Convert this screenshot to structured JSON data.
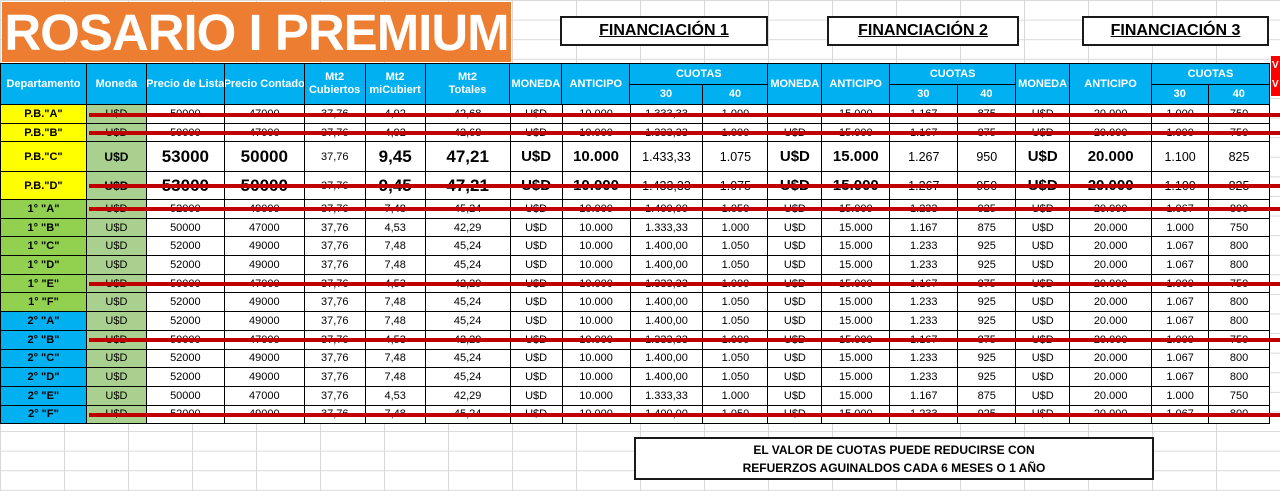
{
  "title": "ROSARIO I PREMIUM",
  "financing_headers": [
    "FINANCIACIÓN 1",
    "FINANCIACIÓN 2",
    "FINANCIACIÓN 3"
  ],
  "columns": {
    "dept": "Departamento",
    "moneda": "Moneda",
    "lista": "Precio de Lista",
    "contado": "Precio Contado",
    "cub_l1": "Mt2",
    "cub_l2": "Cubiertos",
    "semi_l1": "Mt2",
    "semi_l2": "miCubiert",
    "tot_l1": "Mt2",
    "tot_l2": "Totales",
    "fin_mon": "MONEDA",
    "fin_ant": "ANTICIPO",
    "fin_cuotas": "CUOTAS",
    "c30": "30",
    "c40": "40"
  },
  "rows": [
    {
      "dept": "P.B.\"A\"",
      "tier": "pb",
      "struck": true,
      "tall": false,
      "moneda": "U$D",
      "lista": "50000",
      "contado": "47000",
      "cub": "37,76",
      "semi": "4,92",
      "tot": "42,68",
      "f1": [
        "U$D",
        "10.000",
        "1.333,33",
        "1.000"
      ],
      "f2": [
        "",
        "15.000",
        "1.167",
        "875"
      ],
      "f3": [
        "U$D",
        "20.000",
        "1.000",
        "750"
      ]
    },
    {
      "dept": "P.B.\"B\"",
      "tier": "pb",
      "struck": true,
      "tall": false,
      "moneda": "U$D",
      "lista": "50000",
      "contado": "47000",
      "cub": "37,76",
      "semi": "4,92",
      "tot": "42,68",
      "f1": [
        "U$D",
        "10.000",
        "1.333,33",
        "1.000"
      ],
      "f2": [
        "U$D",
        "15.000",
        "1.167",
        "875"
      ],
      "f3": [
        "U$D",
        "20.000",
        "1.000",
        "750"
      ]
    },
    {
      "dept": "P.B.\"C\"",
      "tier": "pb",
      "struck": false,
      "tall": true,
      "moneda": "U$D",
      "lista": "53000",
      "contado": "50000",
      "cub": "37,76",
      "semi": "9,45",
      "tot": "47,21",
      "f1": [
        "U$D",
        "10.000",
        "1.433,33",
        "1.075"
      ],
      "f2": [
        "U$D",
        "15.000",
        "1.267",
        "950"
      ],
      "f3": [
        "U$D",
        "20.000",
        "1.100",
        "825"
      ]
    },
    {
      "dept": "P.B.\"D\"",
      "tier": "pb",
      "struck": true,
      "tall": true,
      "moneda": "U$D",
      "lista": "53000",
      "contado": "50000",
      "cub": "37,76",
      "semi": "9,45",
      "tot": "47,21",
      "f1": [
        "U$D",
        "10.000",
        "1.433,33",
        "1.075"
      ],
      "f2": [
        "U$D",
        "15.000",
        "1.267",
        "950"
      ],
      "f3": [
        "U$D",
        "20.000",
        "1.100",
        "825"
      ]
    },
    {
      "dept": "1° \"A\"",
      "tier": "p1",
      "struck": true,
      "tall": false,
      "moneda": "U$D",
      "lista": "52000",
      "contado": "49000",
      "cub": "37,76",
      "semi": "7,48",
      "tot": "45,24",
      "f1": [
        "U$D",
        "10.000",
        "1.400,00",
        "1.050"
      ],
      "f2": [
        "U$D",
        "15.000",
        "1.233",
        "925"
      ],
      "f3": [
        "U$D",
        "20.000",
        "1.067",
        "800"
      ]
    },
    {
      "dept": "1° \"B\"",
      "tier": "p1",
      "struck": false,
      "tall": false,
      "moneda": "U$D",
      "lista": "50000",
      "contado": "47000",
      "cub": "37,76",
      "semi": "4,53",
      "tot": "42,29",
      "f1": [
        "U$D",
        "10.000",
        "1.333,33",
        "1.000"
      ],
      "f2": [
        "U$D",
        "15.000",
        "1.167",
        "875"
      ],
      "f3": [
        "U$D",
        "20.000",
        "1.000",
        "750"
      ]
    },
    {
      "dept": "1° \"C\"",
      "tier": "p1",
      "struck": false,
      "tall": false,
      "moneda": "U$D",
      "lista": "52000",
      "contado": "49000",
      "cub": "37,76",
      "semi": "7,48",
      "tot": "45,24",
      "f1": [
        "U$D",
        "10.000",
        "1.400,00",
        "1.050"
      ],
      "f2": [
        "U$D",
        "15.000",
        "1.233",
        "925"
      ],
      "f3": [
        "U$D",
        "20.000",
        "1.067",
        "800"
      ]
    },
    {
      "dept": "1° \"D\"",
      "tier": "p1",
      "struck": false,
      "tall": false,
      "moneda": "U$D",
      "lista": "52000",
      "contado": "49000",
      "cub": "37,76",
      "semi": "7,48",
      "tot": "45,24",
      "f1": [
        "U$D",
        "10.000",
        "1.400,00",
        "1.050"
      ],
      "f2": [
        "U$D",
        "15.000",
        "1.233",
        "925"
      ],
      "f3": [
        "U$D",
        "20.000",
        "1.067",
        "800"
      ]
    },
    {
      "dept": "1° \"E\"",
      "tier": "p1",
      "struck": true,
      "tall": false,
      "moneda": "U$D",
      "lista": "50000",
      "contado": "47000",
      "cub": "37,76",
      "semi": "4,53",
      "tot": "42,29",
      "f1": [
        "U$D",
        "10.000",
        "1.333,33",
        "1.000"
      ],
      "f2": [
        "U$D",
        "15.000",
        "1.167",
        "875"
      ],
      "f3": [
        "U$D",
        "20.000",
        "1.000",
        "750"
      ]
    },
    {
      "dept": "1° \"F\"",
      "tier": "p1",
      "struck": false,
      "tall": false,
      "moneda": "U$D",
      "lista": "52000",
      "contado": "49000",
      "cub": "37,76",
      "semi": "7,48",
      "tot": "45,24",
      "f1": [
        "U$D",
        "10.000",
        "1.400,00",
        "1.050"
      ],
      "f2": [
        "U$D",
        "15.000",
        "1.233",
        "925"
      ],
      "f3": [
        "U$D",
        "20.000",
        "1.067",
        "800"
      ]
    },
    {
      "dept": "2° \"A\"",
      "tier": "p2",
      "struck": false,
      "tall": false,
      "moneda": "U$D",
      "lista": "52000",
      "contado": "49000",
      "cub": "37,76",
      "semi": "7,48",
      "tot": "45,24",
      "f1": [
        "U$D",
        "10.000",
        "1.400,00",
        "1.050"
      ],
      "f2": [
        "U$D",
        "15.000",
        "1.233",
        "925"
      ],
      "f3": [
        "U$D",
        "20.000",
        "1.067",
        "800"
      ]
    },
    {
      "dept": "2° \"B\"",
      "tier": "p2",
      "struck": true,
      "tall": false,
      "moneda": "U$D",
      "lista": "50000",
      "contado": "47000",
      "cub": "37,76",
      "semi": "4,53",
      "tot": "42,29",
      "f1": [
        "U$D",
        "10.000",
        "1.333,33",
        "1.000"
      ],
      "f2": [
        "U$D",
        "15.000",
        "1.167",
        "875"
      ],
      "f3": [
        "U$D",
        "20.000",
        "1.000",
        "750"
      ]
    },
    {
      "dept": "2° \"C\"",
      "tier": "p2",
      "struck": false,
      "tall": false,
      "moneda": "U$D",
      "lista": "52000",
      "contado": "49000",
      "cub": "37,76",
      "semi": "7,48",
      "tot": "45,24",
      "f1": [
        "U$D",
        "10.000",
        "1.400,00",
        "1.050"
      ],
      "f2": [
        "U$D",
        "15.000",
        "1.233",
        "925"
      ],
      "f3": [
        "U$D",
        "20.000",
        "1.067",
        "800"
      ]
    },
    {
      "dept": "2° \"D\"",
      "tier": "p2",
      "struck": false,
      "tall": false,
      "moneda": "U$D",
      "lista": "52000",
      "contado": "49000",
      "cub": "37,76",
      "semi": "7,48",
      "tot": "45,24",
      "f1": [
        "U$D",
        "10.000",
        "1.400,00",
        "1.050"
      ],
      "f2": [
        "U$D",
        "15.000",
        "1.233",
        "925"
      ],
      "f3": [
        "U$D",
        "20.000",
        "1.067",
        "800"
      ]
    },
    {
      "dept": "2° \"E\"",
      "tier": "p2",
      "struck": false,
      "tall": false,
      "moneda": "U$D",
      "lista": "50000",
      "contado": "47000",
      "cub": "37,76",
      "semi": "4,53",
      "tot": "42,29",
      "f1": [
        "U$D",
        "10.000",
        "1.333,33",
        "1.000"
      ],
      "f2": [
        "U$D",
        "15.000",
        "1.167",
        "875"
      ],
      "f3": [
        "U$D",
        "20.000",
        "1.000",
        "750"
      ]
    },
    {
      "dept": "2° \"F\"",
      "tier": "p2",
      "struck": true,
      "tall": false,
      "moneda": "U$D",
      "lista": "52000",
      "contado": "49000",
      "cub": "37,76",
      "semi": "7,48",
      "tot": "45,24",
      "f1": [
        "U$D",
        "10.000",
        "1.400,00",
        "1.050"
      ],
      "f2": [
        "U$D",
        "15.000",
        "1.233",
        "925"
      ],
      "f3": [
        "U$D",
        "20.000",
        "1.067",
        "800"
      ]
    }
  ],
  "note": {
    "line1": "EL VALOR DE CUOTAS PUEDE REDUCIRSE CON",
    "line2": "REFUERZOS AGUINALDOS CADA 6 MESES O 1 AÑO"
  },
  "flag": {
    "line1": "V",
    "line2": "V"
  },
  "colors": {
    "banner_orange": "#ED7D31",
    "header_blue": "#00B0F0",
    "tier_pb_yellow": "#FFFF00",
    "tier_p1_green": "#92D050",
    "tier_p2_blue": "#00B0F0",
    "moneda_green": "#A9D08E",
    "strike_red": "#C00000",
    "flag_red": "#FF0000"
  }
}
